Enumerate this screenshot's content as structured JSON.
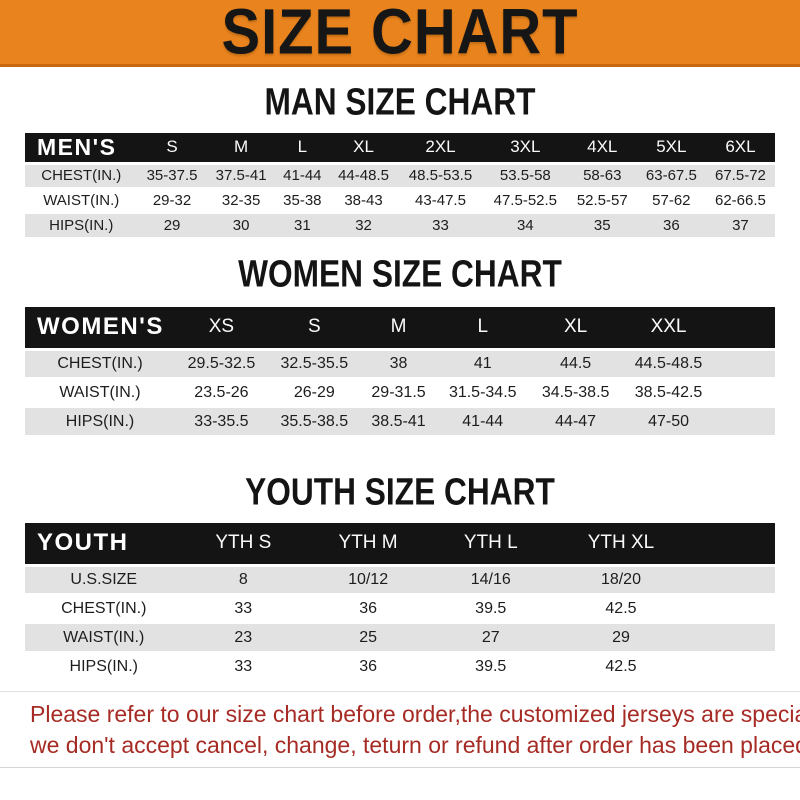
{
  "banner": {
    "title": "SIZE CHART"
  },
  "sections": [
    {
      "id": "men",
      "heading": "MAN SIZE CHART",
      "header_label": "MEN'S",
      "columns": [
        "S",
        "M",
        "L",
        "XL",
        "2XL",
        "3XL",
        "4XL",
        "5XL",
        "6XL"
      ],
      "rows": [
        {
          "label": "CHEST(IN.)",
          "values": [
            "35-37.5",
            "37.5-41",
            "41-44",
            "44-48.5",
            "48.5-53.5",
            "53.5-58",
            "58-63",
            "63-67.5",
            "67.5-72"
          ]
        },
        {
          "label": "WAIST(IN.)",
          "values": [
            "29-32",
            "32-35",
            "35-38",
            "38-43",
            "43-47.5",
            "47.5-52.5",
            "52.5-57",
            "57-62",
            "62-66.5"
          ]
        },
        {
          "label": "HIPS(IN.)",
          "values": [
            "29",
            "30",
            "31",
            "32",
            "33",
            "34",
            "35",
            "36",
            "37"
          ]
        }
      ]
    },
    {
      "id": "women",
      "heading": "WOMEN SIZE CHART",
      "header_label": "WOMEN'S",
      "columns": [
        "XS",
        "S",
        "M",
        "L",
        "XL",
        "XXL"
      ],
      "rows": [
        {
          "label": "CHEST(IN.)",
          "values": [
            "29.5-32.5",
            "32.5-35.5",
            "38",
            "41",
            "44.5",
            "44.5-48.5"
          ]
        },
        {
          "label": "WAIST(IN.)",
          "values": [
            "23.5-26",
            "26-29",
            "29-31.5",
            "31.5-34.5",
            "34.5-38.5",
            "38.5-42.5"
          ]
        },
        {
          "label": "HIPS(IN.)",
          "values": [
            "33-35.5",
            "35.5-38.5",
            "38.5-41",
            "41-44",
            "44-47",
            "47-50"
          ]
        }
      ]
    },
    {
      "id": "youth",
      "heading": "YOUTH SIZE CHART",
      "header_label": "YOUTH",
      "columns": [
        "YTH S",
        "YTH M",
        "YTH L",
        "YTH XL"
      ],
      "rows": [
        {
          "label": "U.S.SIZE",
          "values": [
            "8",
            "10/12",
            "14/16",
            "18/20"
          ]
        },
        {
          "label": "CHEST(IN.)",
          "values": [
            "33",
            "36",
            "39.5",
            "42.5"
          ]
        },
        {
          "label": "WAIST(IN.)",
          "values": [
            "23",
            "25",
            "27",
            "29"
          ]
        },
        {
          "label": "HIPS(IN.)",
          "values": [
            "33",
            "36",
            "39.5",
            "42.5"
          ]
        }
      ]
    }
  ],
  "footer": {
    "line1": "Please refer to our size chart before order,the customized jerseys are special products,",
    "line2": "we don't accept cancel, change, teturn or refund after order has been placed!"
  },
  "colors": {
    "banner_orange": "#E8831D",
    "banner_border": "#C8690E",
    "header_bar": "#141414",
    "row_gray": "#E2E2E2",
    "note_red": "#A62B24"
  }
}
